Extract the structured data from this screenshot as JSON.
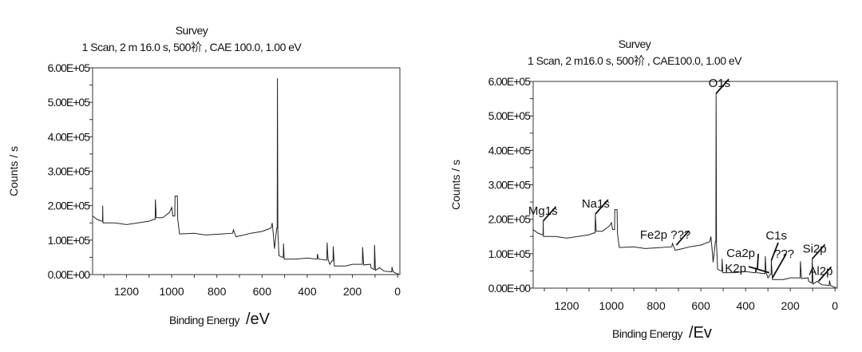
{
  "chart_data": [
    {
      "type": "line",
      "title": "Survey",
      "subtitle": "1 Scan,  2 m 16.0 s,  500祄 ,  CAE 100.0,  1.00 eV",
      "xlabel": "Binding Energy",
      "xunit": "/eV",
      "ylabel": "Counts / s",
      "xlim": [
        1350,
        -10
      ],
      "ylim": [
        0,
        600000
      ],
      "xticks": [
        1200,
        1000,
        800,
        600,
        400,
        200,
        0
      ],
      "yticks": [
        "0.00E+00",
        "1.00E+05",
        "2.00E+05",
        "3.00E+05",
        "4.00E+05",
        "5.00E+05",
        "6.00E+05"
      ],
      "grid": false,
      "series": [
        {
          "x": [
            1350,
            1330,
            1310,
            1306,
            1305,
            1304,
            1300,
            1250,
            1200,
            1150,
            1100,
            1080,
            1073,
            1072,
            1068,
            1040,
            1010,
            1000,
            995,
            986,
            985,
            975,
            973,
            965,
            900,
            850,
            800,
            730,
            727,
            715,
            680,
            650,
            600,
            560,
            555,
            550,
            545,
            540,
            535,
            533,
            532,
            530,
            525,
            510,
            506,
            505,
            502,
            450,
            400,
            360,
            356,
            355,
            350,
            315,
            313,
            312,
            308,
            300,
            290,
            286,
            285,
            280,
            230,
            200,
            160,
            156,
            155,
            150,
            120,
            118,
            105,
            103,
            102,
            98,
            80,
            60,
            30,
            26,
            25,
            20,
            5,
            -5
          ],
          "y": [
            170000,
            160000,
            155000,
            155000,
            200000,
            150000,
            150000,
            150000,
            145000,
            150000,
            155000,
            160000,
            160000,
            218000,
            165000,
            165000,
            180000,
            195000,
            170000,
            170000,
            228000,
            228000,
            160000,
            118000,
            120000,
            115000,
            117000,
            120000,
            130000,
            110000,
            115000,
            120000,
            125000,
            135000,
            150000,
            115000,
            75000,
            105000,
            135000,
            135000,
            570000,
            130000,
            55000,
            50000,
            50000,
            90000,
            45000,
            45000,
            48000,
            45000,
            45000,
            60000,
            45000,
            42000,
            42000,
            93000,
            45000,
            30000,
            40000,
            40000,
            82000,
            25000,
            25000,
            30000,
            30000,
            30000,
            80000,
            28000,
            30000,
            20000,
            15000,
            15000,
            86000,
            12000,
            20000,
            10000,
            8000,
            8000,
            22000,
            8000,
            3000,
            2000
          ]
        }
      ],
      "annotations": []
    },
    {
      "type": "line",
      "title": "Survey",
      "subtitle": "1 Scan,  2 m16.0 s,  500祄 ,  CAE100.0,  1.00 eV",
      "xlabel": "Binding Energy",
      "xunit": "/Ev",
      "ylabel": "Counts / s",
      "xlim": [
        1350,
        -10
      ],
      "ylim": [
        0,
        600000
      ],
      "xticks": [
        1200,
        1000,
        800,
        600,
        400,
        200,
        0
      ],
      "yticks": [
        "0.00E+00",
        "1.00E+05",
        "2.00E+05",
        "3.00E+05",
        "4.00E+05",
        "5.00E+05",
        "6.00E+05"
      ],
      "grid": false,
      "series": [
        {
          "x": [
            1350,
            1330,
            1310,
            1306,
            1305,
            1304,
            1300,
            1250,
            1200,
            1150,
            1100,
            1080,
            1073,
            1072,
            1068,
            1040,
            1010,
            1000,
            995,
            986,
            985,
            975,
            973,
            965,
            900,
            850,
            800,
            730,
            727,
            715,
            680,
            650,
            600,
            560,
            555,
            550,
            545,
            540,
            535,
            533,
            532,
            530,
            525,
            510,
            506,
            505,
            502,
            450,
            400,
            360,
            356,
            355,
            350,
            315,
            313,
            312,
            308,
            300,
            290,
            286,
            285,
            280,
            230,
            200,
            160,
            156,
            155,
            150,
            120,
            118,
            105,
            103,
            102,
            98,
            80,
            60,
            30,
            26,
            25,
            20,
            5,
            -5
          ],
          "y": [
            170000,
            160000,
            155000,
            155000,
            195000,
            150000,
            150000,
            150000,
            145000,
            150000,
            155000,
            160000,
            160000,
            215000,
            165000,
            165000,
            180000,
            190000,
            170000,
            170000,
            228000,
            228000,
            160000,
            118000,
            120000,
            115000,
            117000,
            120000,
            130000,
            110000,
            115000,
            120000,
            125000,
            135000,
            150000,
            115000,
            75000,
            105000,
            135000,
            135000,
            565000,
            130000,
            55000,
            50000,
            50000,
            85000,
            45000,
            45000,
            48000,
            45000,
            45000,
            60000,
            45000,
            42000,
            42000,
            93000,
            45000,
            30000,
            40000,
            40000,
            80000,
            25000,
            25000,
            30000,
            30000,
            30000,
            78000,
            28000,
            30000,
            20000,
            15000,
            15000,
            85000,
            12000,
            20000,
            10000,
            8000,
            8000,
            22000,
            8000,
            3000,
            2000
          ]
        }
      ],
      "annotations": [
        {
          "label": "Mg1s",
          "x": 1305,
          "y": 195000
        },
        {
          "label": "Na1s",
          "x": 1072,
          "y": 215000
        },
        {
          "label": "Fe2p ???",
          "x": 710,
          "y": 125000
        },
        {
          "label": "O1s",
          "x": 532,
          "y": 565000
        },
        {
          "label": "K2p",
          "x": 294,
          "y": 45000
        },
        {
          "label": "Ca2p",
          "x": 347,
          "y": 55000
        },
        {
          "label": "C1s",
          "x": 285,
          "y": 80000
        },
        {
          "label": "???",
          "x": 280,
          "y": 30000
        },
        {
          "label": "Si2p",
          "x": 102,
          "y": 85000
        },
        {
          "label": "Al2p",
          "x": 74,
          "y": 20000
        }
      ]
    }
  ]
}
